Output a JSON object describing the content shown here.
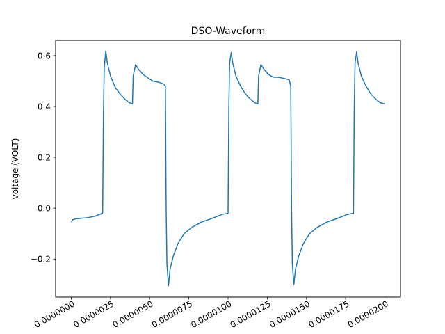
{
  "chart_data": {
    "type": "line",
    "title": "DSO-Waveform",
    "xlabel": "",
    "ylabel": "voltage (VOLT)",
    "xlim": [
      -1e-06,
      2.1e-05
    ],
    "ylim": [
      -0.35,
      0.66
    ],
    "grid": false,
    "legend": "none",
    "x_ticks": [
      0,
      2.5e-06,
      5e-06,
      7.5e-06,
      1e-05,
      1.25e-05,
      1.5e-05,
      1.75e-05,
      2e-05
    ],
    "x_tick_labels": [
      "0.0000000",
      "0.0000025",
      "0.0000050",
      "0.0000075",
      "0.0000100",
      "0.0000125",
      "0.0000150",
      "0.0000175",
      "0.0000200"
    ],
    "y_ticks": [
      -0.2,
      0.0,
      0.2,
      0.4,
      0.6
    ],
    "y_tick_labels": [
      "−0.2",
      "0.0",
      "0.2",
      "0.4",
      "0.6"
    ],
    "series": [
      {
        "color": "#1f77b4",
        "x": [
          0,
          1e-07,
          3e-07,
          6e-07,
          1e-06,
          1.5e-06,
          2e-06,
          2.05e-06,
          2.1e-06,
          2.2e-06,
          2.3e-06,
          2.5e-06,
          2.8e-06,
          3.1e-06,
          3.4e-06,
          3.7e-06,
          3.9e-06,
          3.95e-06,
          4.1e-06,
          4.3e-06,
          4.6e-06,
          4.9e-06,
          5.2e-06,
          5.6e-06,
          5.9e-06,
          6e-06,
          6.05e-06,
          6.1e-06,
          6.2e-06,
          6.3e-06,
          6.5e-06,
          6.8e-06,
          7.2e-06,
          7.7e-06,
          8.3e-06,
          9e-06,
          9.6e-06,
          1e-05,
          1.005e-05,
          1.01e-05,
          1.02e-05,
          1.03e-05,
          1.05e-05,
          1.08e-05,
          1.11e-05,
          1.14e-05,
          1.17e-05,
          1.19e-05,
          1.195e-05,
          1.21e-05,
          1.23e-05,
          1.26e-05,
          1.29e-05,
          1.32e-05,
          1.36e-05,
          1.39e-05,
          1.4e-05,
          1.405e-05,
          1.41e-05,
          1.42e-05,
          1.43e-05,
          1.45e-05,
          1.48e-05,
          1.52e-05,
          1.57e-05,
          1.63e-05,
          1.7e-05,
          1.76e-05,
          1.8e-05,
          1.805e-05,
          1.81e-05,
          1.82e-05,
          1.83e-05,
          1.85e-05,
          1.88e-05,
          1.91e-05,
          1.94e-05,
          1.97e-05,
          2e-05
        ],
        "y": [
          -0.055,
          -0.045,
          -0.042,
          -0.04,
          -0.038,
          -0.032,
          -0.02,
          0.37,
          0.55,
          0.618,
          0.57,
          0.52,
          0.475,
          0.45,
          0.43,
          0.415,
          0.41,
          0.52,
          0.565,
          0.545,
          0.525,
          0.512,
          0.5,
          0.495,
          0.488,
          0.48,
          0.0,
          -0.22,
          -0.305,
          -0.24,
          -0.19,
          -0.14,
          -0.1,
          -0.075,
          -0.055,
          -0.04,
          -0.025,
          -0.02,
          0.4,
          0.57,
          0.612,
          0.57,
          0.52,
          0.48,
          0.45,
          0.43,
          0.415,
          0.41,
          0.52,
          0.565,
          0.545,
          0.525,
          0.515,
          0.515,
          0.51,
          0.505,
          0.48,
          0.0,
          -0.22,
          -0.3,
          -0.24,
          -0.19,
          -0.14,
          -0.1,
          -0.075,
          -0.055,
          -0.04,
          -0.025,
          -0.02,
          0.4,
          0.57,
          0.615,
          0.57,
          0.52,
          0.48,
          0.45,
          0.43,
          0.415,
          0.41
        ]
      }
    ]
  }
}
